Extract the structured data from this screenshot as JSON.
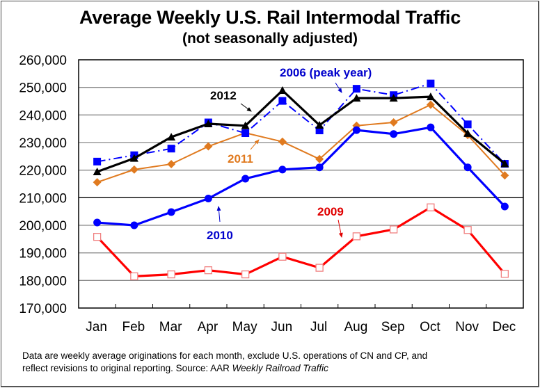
{
  "chart_data": {
    "type": "line",
    "title": "Average Weekly U.S. Rail Intermodal Traffic",
    "subtitle": "(not seasonally adjusted)",
    "xlabel": "",
    "ylabel": "",
    "categories": [
      "Jan",
      "Feb",
      "Mar",
      "Apr",
      "May",
      "Jun",
      "Jul",
      "Aug",
      "Sep",
      "Oct",
      "Nov",
      "Dec"
    ],
    "ylim": [
      170000,
      260000
    ],
    "yticks": [
      170000,
      180000,
      190000,
      200000,
      210000,
      220000,
      230000,
      240000,
      250000,
      260000
    ],
    "ytick_labels": [
      "170,000",
      "180,000",
      "190,000",
      "200,000",
      "210,000",
      "220,000",
      "230,000",
      "240,000",
      "250,000",
      "260,000"
    ],
    "grid": true,
    "legend": "none (inline annotations)",
    "series": [
      {
        "name": "2006 (peak year)",
        "color": "#0000FF",
        "line": "dash-dot",
        "marker": "square-filled",
        "values": [
          223100,
          225400,
          227800,
          237300,
          233400,
          245100,
          234400,
          249500,
          247200,
          251400,
          236600,
          222300
        ]
      },
      {
        "name": "2009",
        "color": "#FF0000",
        "line": "solid",
        "marker": "square-open",
        "values": [
          195800,
          181500,
          182200,
          183700,
          182200,
          188600,
          184600,
          196000,
          198500,
          206500,
          198300,
          182400
        ]
      },
      {
        "name": "2010",
        "color": "#0000FF",
        "line": "solid",
        "marker": "circle",
        "values": [
          201000,
          200000,
          204800,
          209700,
          216900,
          220200,
          221000,
          234500,
          233100,
          235500,
          221000,
          206800
        ]
      },
      {
        "name": "2011",
        "color": "#E07A1F",
        "line": "solid-thin",
        "marker": "diamond",
        "values": [
          215600,
          220200,
          222200,
          228600,
          233500,
          230300,
          224000,
          236100,
          237300,
          243700,
          232700,
          218100
        ]
      },
      {
        "name": "2012",
        "color": "#000000",
        "line": "solid",
        "marker": "triangle",
        "values": [
          219400,
          224300,
          232000,
          236800,
          236100,
          248900,
          236300,
          246100,
          246100,
          246600,
          233300,
          222300
        ]
      }
    ],
    "annotations": [
      {
        "text": "2006 (peak year)",
        "series": "2006 (peak year)",
        "color": "#0000CC"
      },
      {
        "text": "2012",
        "series": "2012",
        "color": "#000000"
      },
      {
        "text": "2011",
        "series": "2011",
        "color": "#E07A1F"
      },
      {
        "text": "2010",
        "series": "2010",
        "color": "#0000CC"
      },
      {
        "text": "2009",
        "series": "2009",
        "color": "#E00000"
      }
    ]
  },
  "footnote": {
    "line1": "Data are weekly average originations for each month, exclude U.S. operations of CN and CP, and",
    "line2_prefix": "reflect revisions to original reporting.  Source: AAR ",
    "line2_italic": "Weekly Railroad Traffic"
  }
}
